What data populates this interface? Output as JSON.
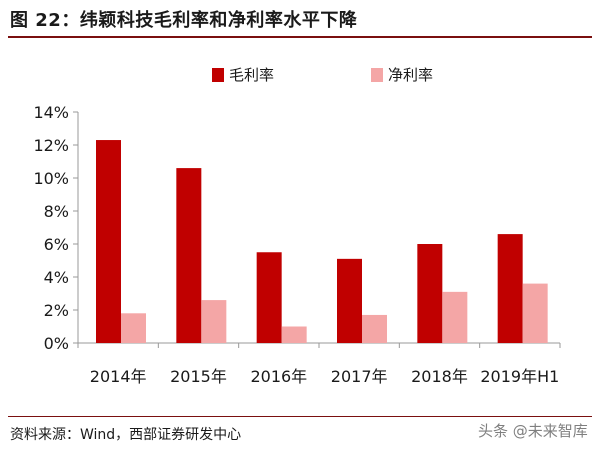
{
  "title": "图 22：纬颖科技毛利率和净利率水平下降",
  "source": "资料来源：Wind，西部证券研发中心",
  "watermark": "头条 @未来智库",
  "colors": {
    "gross": "#c00000",
    "net": "#f4a6a6",
    "axis": "#999999",
    "title_rule": "#7a0f0f"
  },
  "chart_data": {
    "type": "bar",
    "categories": [
      "2014年",
      "2015年",
      "2016年",
      "2017年",
      "2018年",
      "2019年H1"
    ],
    "series": [
      {
        "name": "毛利率",
        "values": [
          12.3,
          10.6,
          5.5,
          5.1,
          6.0,
          6.6
        ]
      },
      {
        "name": "净利率",
        "values": [
          1.8,
          2.6,
          1.0,
          1.7,
          3.1,
          3.6
        ]
      }
    ],
    "yticks": [
      "0%",
      "2%",
      "4%",
      "6%",
      "8%",
      "10%",
      "12%",
      "14%"
    ],
    "ylim": [
      0,
      14
    ],
    "legend_position": "top-center",
    "grid": false
  }
}
